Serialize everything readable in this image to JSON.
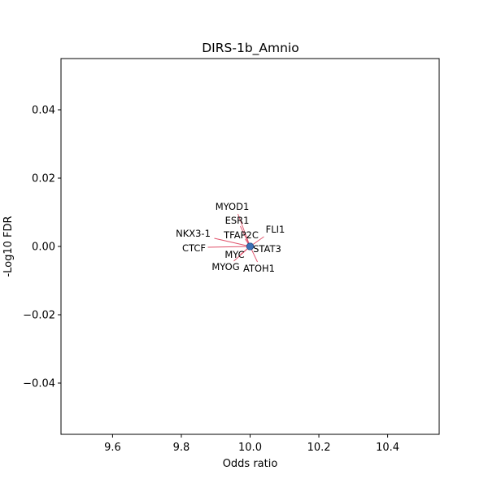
{
  "chart_data": {
    "type": "scatter",
    "title": "DIRS-1b_Amnio",
    "xlabel": "Odds ratio",
    "ylabel": "-Log10 FDR",
    "xlim": [
      9.45,
      10.55
    ],
    "ylim": [
      -0.055,
      0.055
    ],
    "xticks": [
      9.6,
      9.8,
      10.0,
      10.2,
      10.4
    ],
    "xtick_labels": [
      "9.6",
      "9.8",
      "10.0",
      "10.2",
      "10.4"
    ],
    "yticks": [
      0.04,
      0.02,
      0.0,
      -0.02,
      -0.04
    ],
    "ytick_labels": [
      "0.04",
      "0.02",
      "0.00",
      "−0.02",
      "−0.04"
    ],
    "grid": false,
    "point_color": "#3b6fb6",
    "leader_color": "#e0506a",
    "points": [
      {
        "label": "MYOD1",
        "x": 10.0,
        "y": 0.0
      },
      {
        "label": "ESR1",
        "x": 10.0,
        "y": 0.0
      },
      {
        "label": "FLI1",
        "x": 10.0,
        "y": 0.0
      },
      {
        "label": "NKX3-1",
        "x": 10.0,
        "y": 0.0
      },
      {
        "label": "TFAP2C",
        "x": 10.0,
        "y": 0.0
      },
      {
        "label": "CTCF",
        "x": 10.0,
        "y": 0.0
      },
      {
        "label": "STAT3",
        "x": 10.0,
        "y": 0.0
      },
      {
        "label": "MYC",
        "x": 10.0,
        "y": 0.0
      },
      {
        "label": "MYOG",
        "x": 10.0,
        "y": 0.0
      },
      {
        "label": "ATOH1",
        "x": 10.0,
        "y": 0.0
      }
    ]
  }
}
